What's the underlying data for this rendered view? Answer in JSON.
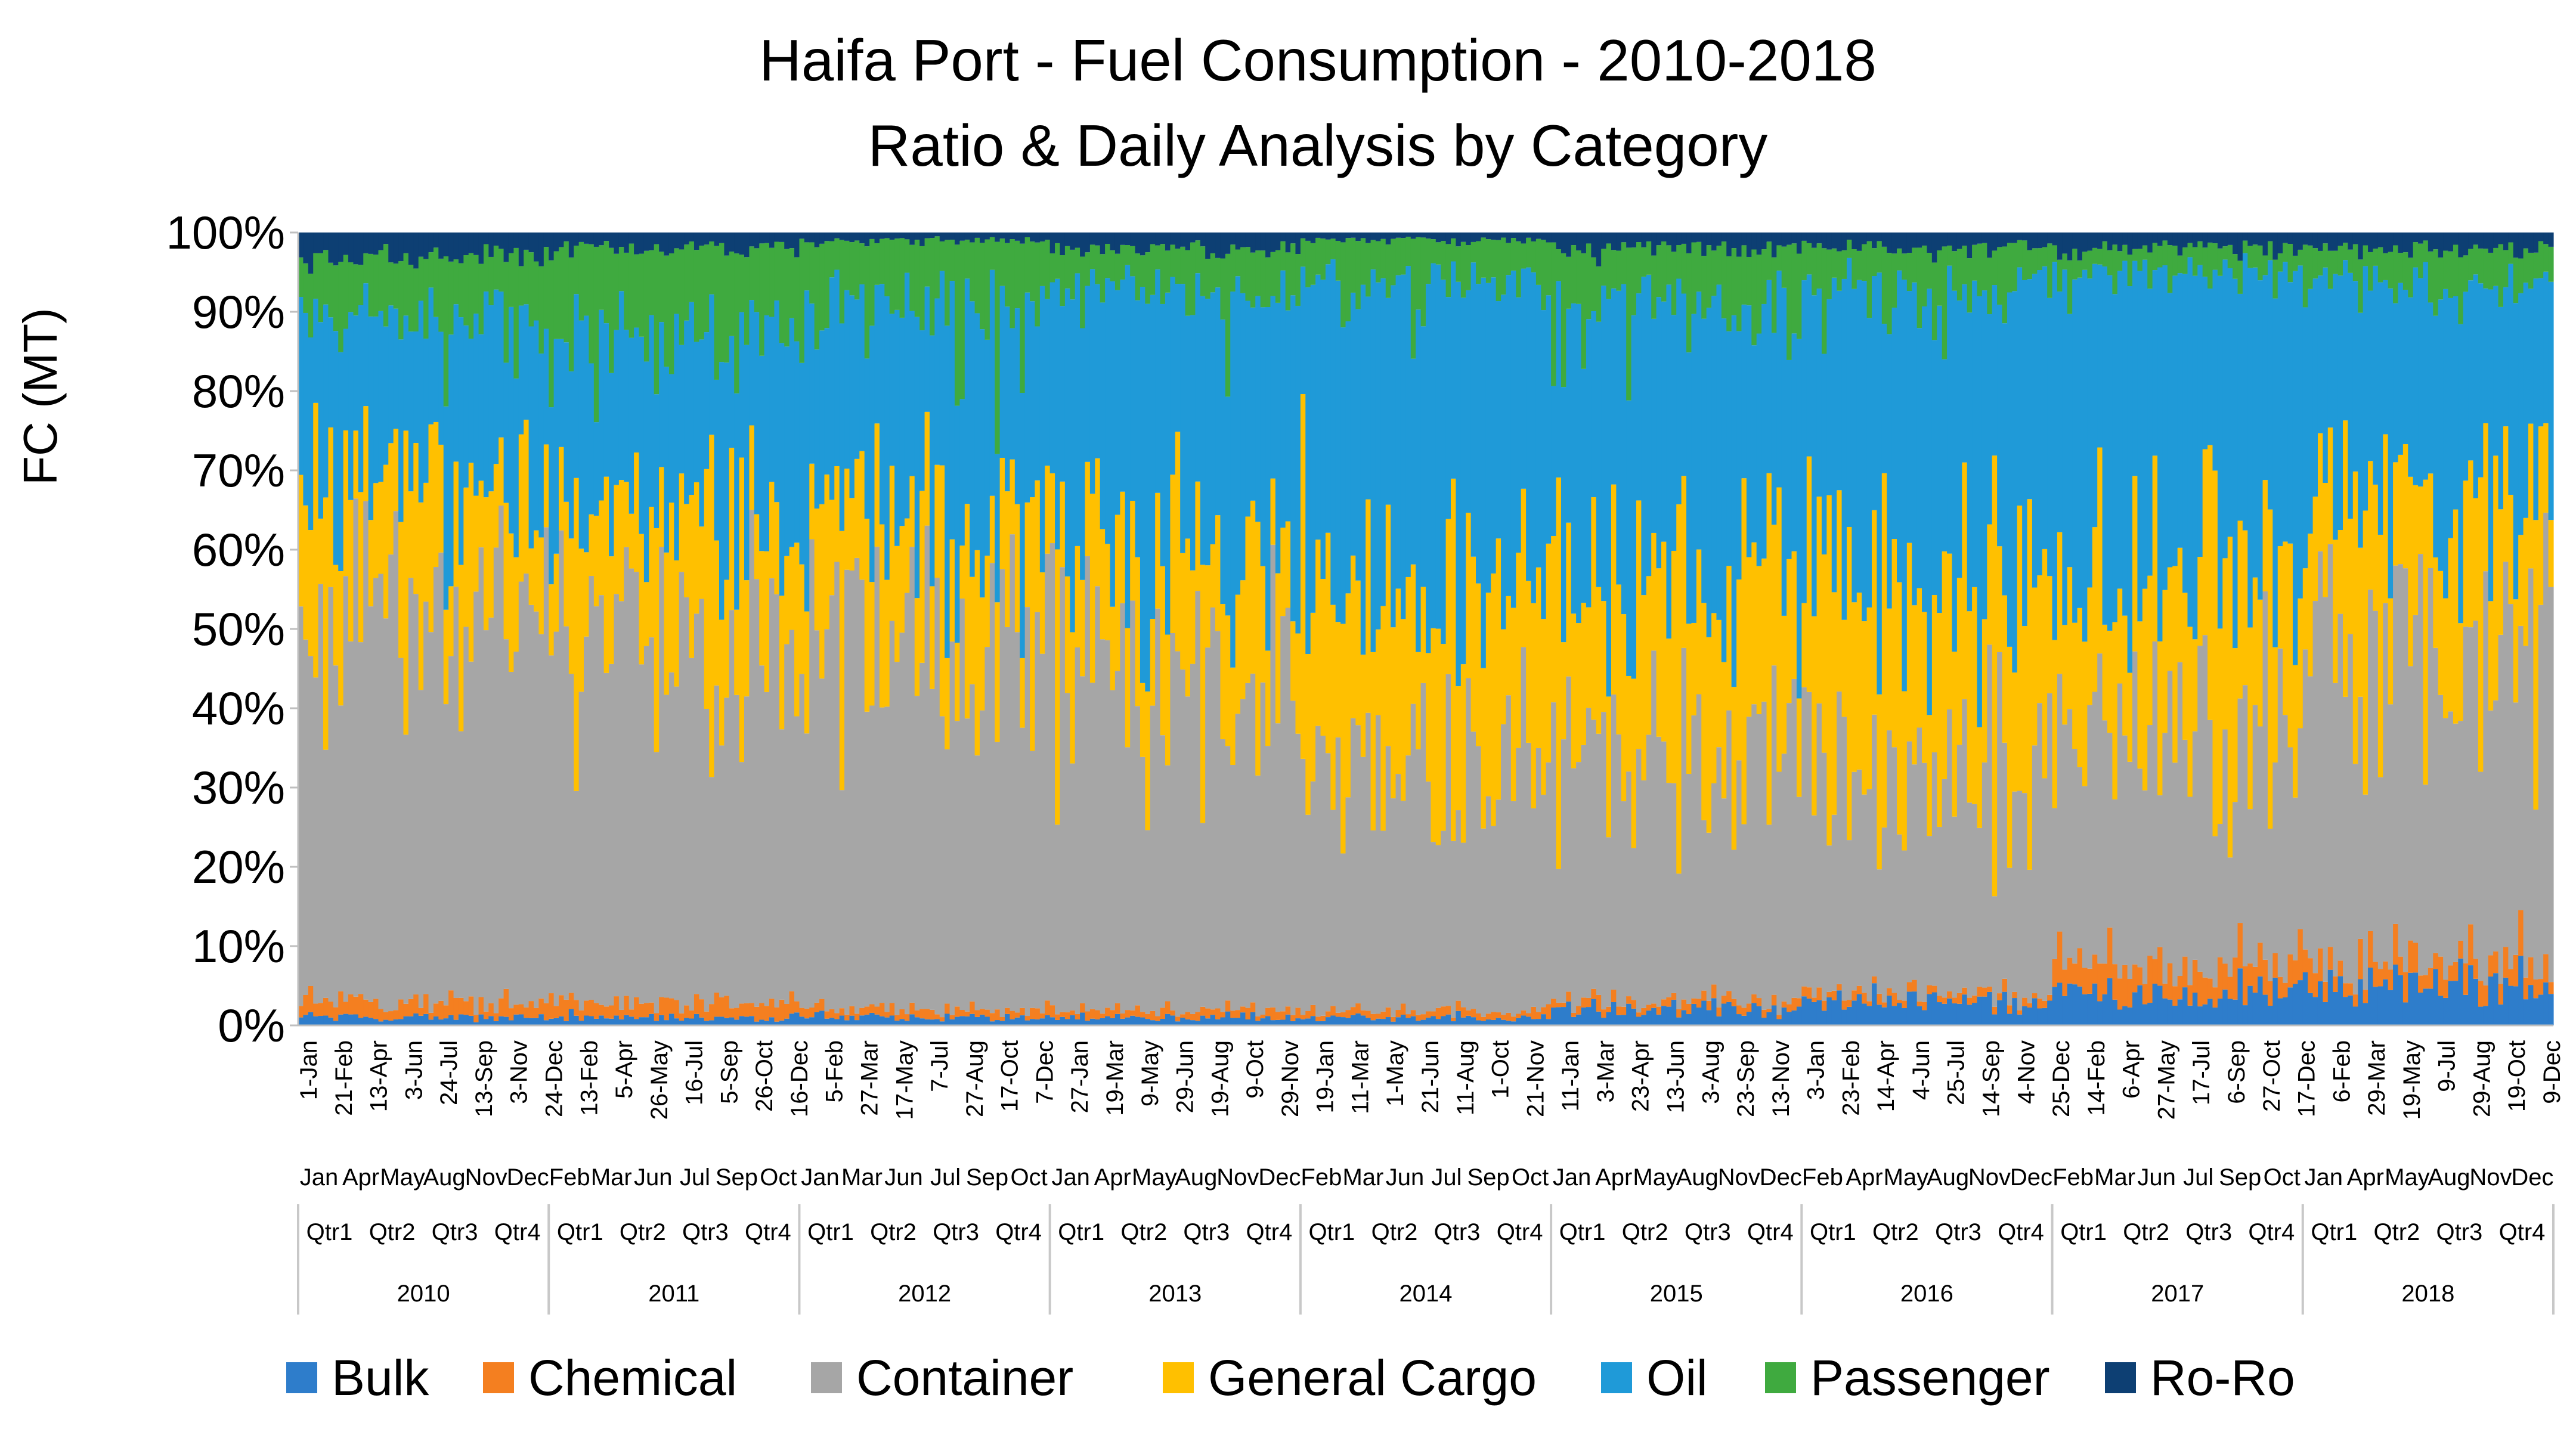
{
  "chart_data": {
    "type": "bar",
    "stacked": true,
    "normalized": true,
    "title": "Haifa Port - Fuel Consumption - 2010-2018",
    "subtitle": "Ratio & Daily Analysis by Category",
    "ylabel": "FC (MT)",
    "xlabel": "",
    "ylim": [
      0,
      100
    ],
    "y_ticks": [
      "0%",
      "10%",
      "20%",
      "30%",
      "40%",
      "50%",
      "60%",
      "70%",
      "80%",
      "90%",
      "100%"
    ],
    "grid": false,
    "legend_position": "bottom",
    "series": [
      {
        "name": "Bulk",
        "color": "#2E7DCB"
      },
      {
        "name": "Chemical",
        "color": "#F47F20"
      },
      {
        "name": "Container",
        "color": "#A6A6A6"
      },
      {
        "name": "General Cargo",
        "color": "#FFC000"
      },
      {
        "name": "Oil",
        "color": "#1F9AD8"
      },
      {
        "name": "Passenger",
        "color": "#3FAA3F"
      },
      {
        "name": "Ro-Ro",
        "color": "#0D3F73"
      }
    ],
    "year_labels": [
      "2010",
      "2011",
      "2012",
      "2013",
      "2014",
      "2015",
      "2016",
      "2017",
      "2018"
    ],
    "quarter_labels": [
      "Qtr1",
      "Qtr2",
      "Qtr3",
      "Qtr4"
    ],
    "month_labels_by_year": [
      [
        "Jan",
        "Apr",
        "May",
        "Aug",
        "Nov",
        "Dec"
      ],
      [
        "Feb",
        "Mar",
        "Jun",
        "Jul",
        "Sep",
        "Oct"
      ],
      [
        "Jan",
        "Mar",
        "Jun",
        "Jul",
        "Sep",
        "Oct"
      ],
      [
        "Jan",
        "Apr",
        "May",
        "Aug",
        "Nov",
        "Dec"
      ],
      [
        "Feb",
        "Mar",
        "Jun",
        "Jul",
        "Sep",
        "Oct"
      ],
      [
        "Jan",
        "Apr",
        "May",
        "Aug",
        "Nov",
        "Dec"
      ],
      [
        "Feb",
        "Apr",
        "May",
        "Aug",
        "Nov",
        "Dec"
      ],
      [
        "Feb",
        "Mar",
        "Jun",
        "Jul",
        "Sep",
        "Oct"
      ],
      [
        "Jan",
        "Apr",
        "May",
        "Aug",
        "Nov",
        "Dec"
      ]
    ],
    "date_tick_labels": [
      "1-Jan",
      "21-Feb",
      "13-Apr",
      "3-Jun",
      "24-Jul",
      "13-Sep",
      "3-Nov",
      "24-Dec",
      "13-Feb",
      "5-Apr",
      "26-May",
      "16-Jul",
      "5-Sep",
      "26-Oct",
      "16-Dec",
      "5-Feb",
      "27-Mar",
      "17-May",
      "7-Jul",
      "27-Aug",
      "17-Oct",
      "7-Dec",
      "27-Jan",
      "19-Mar",
      "9-May",
      "29-Jun",
      "19-Aug",
      "9-Oct",
      "29-Nov",
      "19-Jan",
      "11-Mar",
      "1-May",
      "21-Jun",
      "11-Aug",
      "1-Oct",
      "21-Nov",
      "11-Jan",
      "3-Mar",
      "23-Apr",
      "13-Jun",
      "3-Aug",
      "23-Sep",
      "13-Nov",
      "3-Jan",
      "23-Feb",
      "14-Apr",
      "4-Jun",
      "25-Jul",
      "14-Sep",
      "4-Nov",
      "25-Dec",
      "14-Feb",
      "6-Apr",
      "27-May",
      "17-Jul",
      "6-Sep",
      "27-Oct",
      "17-Dec",
      "6-Feb",
      "29-Mar",
      "19-May",
      "9-Jul",
      "29-Aug",
      "19-Oct",
      "9-Dec"
    ],
    "note": "Approximately 450 daily-resolution stacked bars (about 50 per year); each bar shows the share of fuel consumption by category (approximate values read from the chart).",
    "period_shares": {
      "2010": {
        "Bulk": 1,
        "Chemical": 2,
        "Container": 51,
        "General Cargo": 13,
        "Oil": 22,
        "Passenger": 8,
        "Ro-Ro": 3
      },
      "2011": {
        "Bulk": 1,
        "Chemical": 2,
        "Container": 49,
        "General Cargo": 13,
        "Oil": 22,
        "Passenger": 11,
        "Ro-Ro": 2
      },
      "2012": {
        "Bulk": 1,
        "Chemical": 1,
        "Container": 50,
        "General Cargo": 13,
        "Oil": 26,
        "Passenger": 8,
        "Ro-Ro": 1
      },
      "2013": {
        "Bulk": 1,
        "Chemical": 1,
        "Container": 43,
        "General Cargo": 13,
        "Oil": 35,
        "Passenger": 5,
        "Ro-Ro": 2
      },
      "2014": {
        "Bulk": 1,
        "Chemical": 1,
        "Container": 34,
        "General Cargo": 21,
        "Oil": 37,
        "Passenger": 5,
        "Ro-Ro": 1
      },
      "2015": {
        "Bulk": 2,
        "Chemical": 1,
        "Container": 33,
        "General Cargo": 19,
        "Oil": 36,
        "Passenger": 7,
        "Ro-Ro": 2
      },
      "2016": {
        "Bulk": 3,
        "Chemical": 1,
        "Container": 29,
        "General Cargo": 21,
        "Oil": 39,
        "Passenger": 5,
        "Ro-Ro": 2
      },
      "2017": {
        "Bulk": 4,
        "Chemical": 4,
        "Container": 31,
        "General Cargo": 19,
        "Oil": 37,
        "Passenger": 3,
        "Ro-Ro": 2
      },
      "2018": {
        "Bulk": 5,
        "Chemical": 3,
        "Container": 43,
        "General Cargo": 15,
        "Oil": 28,
        "Passenger": 4,
        "Ro-Ro": 2
      }
    }
  }
}
